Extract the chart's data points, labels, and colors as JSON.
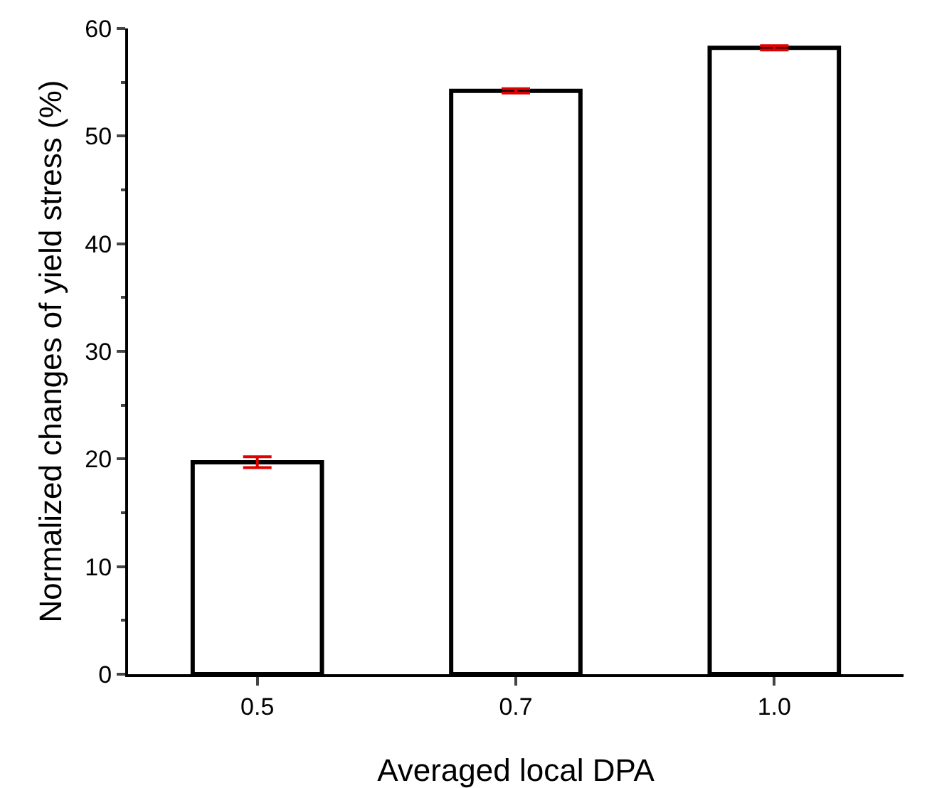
{
  "chart_data": {
    "type": "bar",
    "xlabel": "Averaged local DPA",
    "ylabel": "Normalized changes of yield stress (%)",
    "categories": [
      "0.5",
      "0.7",
      "1.0"
    ],
    "values": [
      19.7,
      54.2,
      58.2
    ],
    "errors": [
      0.5,
      0.2,
      0.2
    ],
    "color": "#ffffff",
    "ylim": [
      0,
      60
    ],
    "yticks": [
      0,
      10,
      20,
      30,
      40,
      50,
      60
    ],
    "grid": false
  }
}
